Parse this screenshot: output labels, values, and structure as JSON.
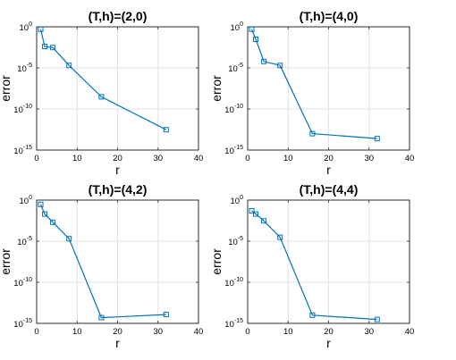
{
  "chart_data": [
    {
      "type": "line",
      "title": "(T,h)=(2,0)",
      "xlabel": "r",
      "ylabel": "error",
      "xlim": [
        0,
        40
      ],
      "ylim": [
        1e-15,
        1
      ],
      "yscale": "log",
      "grid": true,
      "xticks": [
        "0",
        "10",
        "20",
        "30",
        "40"
      ],
      "yticks": [
        {
          "base": "10",
          "exp": "0"
        },
        {
          "base": "10",
          "exp": "-5"
        },
        {
          "base": "10",
          "exp": "-10"
        },
        {
          "base": "10",
          "exp": "-15"
        }
      ],
      "series": [
        {
          "x": [
            1,
            2,
            4,
            8,
            16,
            32
          ],
          "y": [
            0.5,
            0.004,
            0.003,
            2e-05,
            3e-09,
            3e-13
          ],
          "marker": "square"
        }
      ]
    },
    {
      "type": "line",
      "title": "(T,h)=(4,0)",
      "xlabel": "r",
      "ylabel": "error",
      "xlim": [
        0,
        40
      ],
      "ylim": [
        1e-15,
        1
      ],
      "yscale": "log",
      "grid": true,
      "xticks": [
        "0",
        "10",
        "20",
        "30",
        "40"
      ],
      "yticks": [
        {
          "base": "10",
          "exp": "0"
        },
        {
          "base": "10",
          "exp": "-5"
        },
        {
          "base": "10",
          "exp": "-10"
        },
        {
          "base": "10",
          "exp": "-15"
        }
      ],
      "series": [
        {
          "x": [
            1,
            2,
            4,
            8,
            16,
            32
          ],
          "y": [
            0.5,
            0.03,
            6e-05,
            2e-05,
            1e-13,
            2.5e-14
          ],
          "marker": "square"
        }
      ]
    },
    {
      "type": "line",
      "title": "(T,h)=(4,2)",
      "xlabel": "r",
      "ylabel": "error",
      "xlim": [
        0,
        40
      ],
      "ylim": [
        1e-15,
        1
      ],
      "yscale": "log",
      "grid": true,
      "xticks": [
        "0",
        "10",
        "20",
        "30",
        "40"
      ],
      "yticks": [
        {
          "base": "10",
          "exp": "0"
        },
        {
          "base": "10",
          "exp": "-5"
        },
        {
          "base": "10",
          "exp": "-10"
        },
        {
          "base": "10",
          "exp": "-15"
        }
      ],
      "series": [
        {
          "x": [
            1,
            2,
            4,
            8,
            16,
            32
          ],
          "y": [
            0.3,
            0.02,
            0.002,
            2e-05,
            5e-15,
            1.2e-14
          ],
          "marker": "square"
        }
      ]
    },
    {
      "type": "line",
      "title": "(T,h)=(4,4)",
      "xlabel": "r",
      "ylabel": "error",
      "xlim": [
        0,
        40
      ],
      "ylim": [
        1e-15,
        1
      ],
      "yscale": "log",
      "grid": true,
      "xticks": [
        "0",
        "10",
        "20",
        "30",
        "40"
      ],
      "yticks": [
        {
          "base": "10",
          "exp": "0"
        },
        {
          "base": "10",
          "exp": "-5"
        },
        {
          "base": "10",
          "exp": "-10"
        },
        {
          "base": "10",
          "exp": "-15"
        }
      ],
      "series": [
        {
          "x": [
            1,
            2,
            4,
            8,
            16,
            32
          ],
          "y": [
            0.05,
            0.02,
            0.003,
            3e-05,
            1e-14,
            3e-15
          ],
          "marker": "square"
        }
      ]
    }
  ],
  "colors": {
    "series": "#0072bd",
    "grid": "#e3e3e3",
    "axes": "#262626"
  }
}
